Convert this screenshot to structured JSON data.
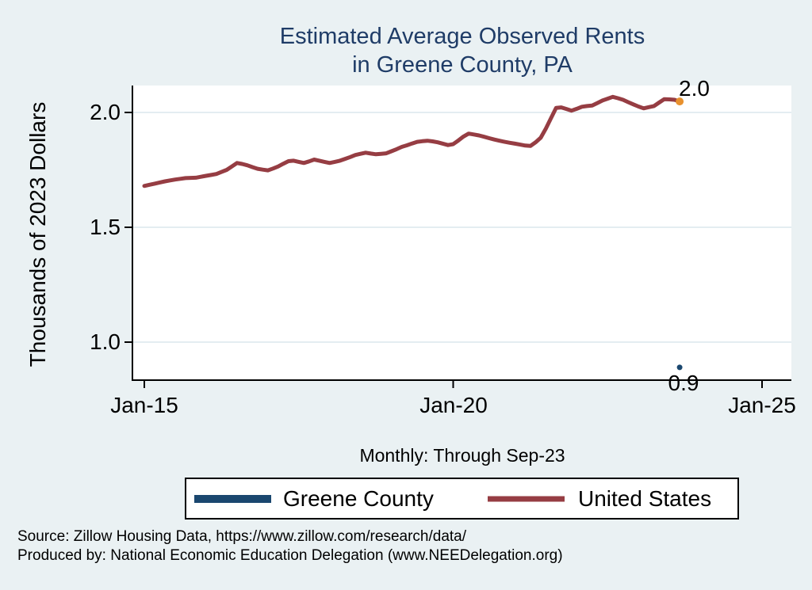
{
  "colors": {
    "background": "#eaf1f3",
    "plot_background": "#ffffff",
    "gridline": "#e4edf1",
    "axis": "#000000",
    "title_text": "#1f3c67",
    "united_states_line": "#963d43",
    "greene_county_point": "#1a476f",
    "end_marker": "#e8912e"
  },
  "footer": {
    "line1": "Source: Zillow Housing Data, https://www.zillow.com/research/data/",
    "line2": "Produced by: National Economic Education Delegation (www.NEEDelegation.org)"
  },
  "chart_data": {
    "type": "line",
    "title": "Estimated Average Observed Rents in Greene County, PA",
    "title_lines": [
      "Estimated Average Observed Rents",
      "in Greene County, PA"
    ],
    "subtitle": "Monthly: Through Sep-23",
    "ylabel": "Thousands of 2023 Dollars",
    "xlabel": "",
    "frequency": "monthly",
    "x_start": "2015-01",
    "x_end": "2023-09",
    "ylim": [
      0.83,
      2.12
    ],
    "y_gridlines": [
      2.0,
      1.5,
      1.0
    ],
    "y_tick_labels": [
      "2.0",
      "1.5",
      "1.0"
    ],
    "x_tick_months": [
      0,
      60,
      120
    ],
    "x_tick_labels": [
      "Jan-15",
      "Jan-20",
      "Jan-25"
    ],
    "grid": true,
    "legend": {
      "position": "bottom",
      "entries": [
        "Greene County",
        "United States"
      ]
    },
    "annotations": [
      {
        "text": "2.0",
        "series": "United States",
        "at": "2023-09"
      },
      {
        "text": "0.9",
        "series": "Greene County",
        "at": "2023-09"
      }
    ],
    "series": [
      {
        "name": "Greene County",
        "color": "#1a476f",
        "style": "point",
        "points": [
          {
            "month_index": 104,
            "date": "2023-09",
            "value": 0.89
          }
        ]
      },
      {
        "name": "United States",
        "color": "#963d43",
        "style": "line",
        "line_width": 5,
        "end_marker_color": "#e8912e",
        "values": [
          1.68,
          1.685,
          1.69,
          1.695,
          1.7,
          1.704,
          1.708,
          1.711,
          1.714,
          1.715,
          1.716,
          1.72,
          1.724,
          1.728,
          1.732,
          1.741,
          1.75,
          1.765,
          1.78,
          1.776,
          1.77,
          1.762,
          1.755,
          1.751,
          1.748,
          1.756,
          1.765,
          1.777,
          1.788,
          1.79,
          1.785,
          1.78,
          1.787,
          1.795,
          1.79,
          1.785,
          1.78,
          1.785,
          1.79,
          1.798,
          1.806,
          1.815,
          1.82,
          1.825,
          1.821,
          1.818,
          1.82,
          1.822,
          1.831,
          1.84,
          1.85,
          1.857,
          1.865,
          1.872,
          1.875,
          1.877,
          1.874,
          1.87,
          1.864,
          1.858,
          1.862,
          1.878,
          1.895,
          1.908,
          1.904,
          1.9,
          1.894,
          1.888,
          1.882,
          1.877,
          1.872,
          1.868,
          1.864,
          1.86,
          1.856,
          1.854,
          1.87,
          1.89,
          1.93,
          1.975,
          2.02,
          2.022,
          2.015,
          2.008,
          2.016,
          2.025,
          2.028,
          2.03,
          2.041,
          2.052,
          2.06,
          2.068,
          2.062,
          2.055,
          2.045,
          2.035,
          2.026,
          2.018,
          2.023,
          2.028,
          2.043,
          2.058,
          2.057,
          2.055,
          2.048
        ]
      }
    ]
  }
}
